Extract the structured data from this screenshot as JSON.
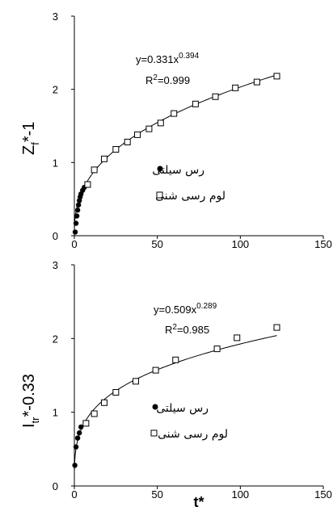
{
  "chart_data": [
    {
      "type": "scatter",
      "id": "top",
      "xlabel": "",
      "ylabel_main": "Z",
      "ylabel_sub": "f",
      "ylabel_rest": "*-1",
      "xlim": [
        0,
        150
      ],
      "ylim": [
        0,
        3
      ],
      "xticks": [
        0,
        50,
        100,
        150
      ],
      "yticks": [
        0,
        1,
        2,
        3
      ],
      "equation": {
        "base": "y=0.331x",
        "exp": "0.394"
      },
      "r2": {
        "pre": "R",
        "sup": "2",
        "post": "=0.999"
      },
      "fit": {
        "a": 0.331,
        "b": 0.394
      },
      "series": [
        {
          "name": "رس سیلتی",
          "marker": "filled-circle",
          "x": [
            0.5,
            1.0,
            1.5,
            2.0,
            2.5,
            3.0,
            3.5,
            4.0,
            5.0,
            6.0
          ],
          "y": [
            0.05,
            0.17,
            0.27,
            0.35,
            0.42,
            0.48,
            0.53,
            0.57,
            0.62,
            0.66
          ]
        },
        {
          "name": "لوم رسی شنی",
          "marker": "open-square",
          "x": [
            8,
            12,
            18,
            25,
            32,
            38,
            45,
            52,
            60,
            73,
            85,
            97,
            110,
            122
          ],
          "y": [
            0.7,
            0.9,
            1.05,
            1.18,
            1.28,
            1.38,
            1.46,
            1.54,
            1.67,
            1.8,
            1.9,
            2.02,
            2.1,
            2.18
          ]
        }
      ]
    },
    {
      "type": "scatter",
      "id": "bottom",
      "xlabel": "t*",
      "ylabel_main": "I",
      "ylabel_sub": "tr",
      "ylabel_rest": "*-0.33",
      "xlim": [
        0,
        150
      ],
      "ylim": [
        0,
        3
      ],
      "xticks": [
        0,
        50,
        100,
        150
      ],
      "yticks": [
        0,
        1,
        2,
        3
      ],
      "equation": {
        "base": "y=0.509x",
        "exp": "0.289"
      },
      "r2": {
        "pre": "R",
        "sup": "2",
        "post": "=0.985"
      },
      "fit": {
        "a": 0.509,
        "b": 0.289
      },
      "series": [
        {
          "name": "رس سیلتی",
          "marker": "filled-circle",
          "x": [
            0.3,
            1.0,
            2.0,
            3.0,
            4.0
          ],
          "y": [
            0.28,
            0.53,
            0.65,
            0.72,
            0.8
          ]
        },
        {
          "name": "لوم رسی شنی",
          "marker": "open-square",
          "x": [
            7,
            12,
            18,
            25,
            37,
            49,
            61,
            86,
            98,
            122
          ],
          "y": [
            0.85,
            0.98,
            1.13,
            1.27,
            1.42,
            1.57,
            1.71,
            1.86,
            2.01,
            2.15
          ]
        }
      ]
    }
  ]
}
